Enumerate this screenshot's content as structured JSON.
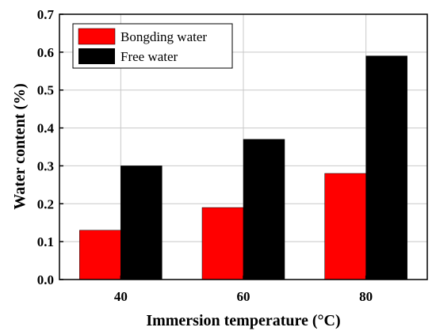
{
  "chart_data": {
    "type": "bar",
    "xlabel": "Immersion temperature (°C)",
    "ylabel": "Water content (%)",
    "categories": [
      "40",
      "60",
      "80"
    ],
    "ylim": [
      0,
      0.7
    ],
    "yticks": [
      "0.0",
      "0.1",
      "0.2",
      "0.3",
      "0.4",
      "0.5",
      "0.6",
      "0.7"
    ],
    "grid": true,
    "legend_position": "top-left",
    "series": [
      {
        "name": "Bongding water",
        "color": "#ff0000",
        "values": [
          0.13,
          0.19,
          0.28
        ]
      },
      {
        "name": "Free water",
        "color": "#000000",
        "values": [
          0.3,
          0.37,
          0.59
        ]
      }
    ]
  }
}
